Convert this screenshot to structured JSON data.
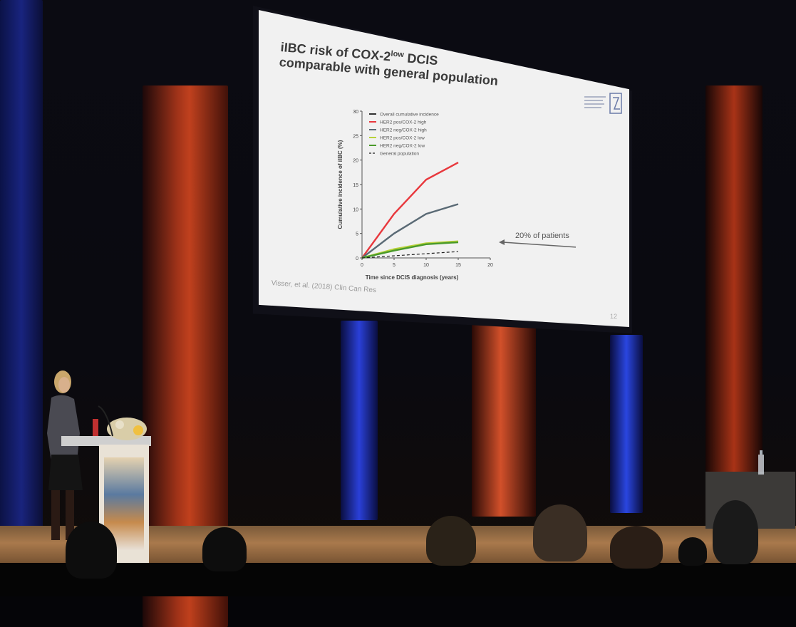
{
  "slide": {
    "title_line1": "iIBC risk of COX-2",
    "title_sup": "low",
    "title_line1_end": " DCIS",
    "title_line2": "comparable with general population",
    "citation": "Visser, et al. (2018) Clin Can Res",
    "slide_number": "12",
    "annotation": "20% of patients"
  },
  "chart_data": {
    "type": "line",
    "ylabel": "Cumulative incidence of iIBC (%)",
    "xlabel": "Time since DCIS diagnosis (years)",
    "xlim": [
      0,
      20
    ],
    "ylim": [
      0,
      30
    ],
    "x_ticks": [
      "0",
      "5",
      "10",
      "15",
      "20"
    ],
    "y_ticks": [
      "0",
      "5",
      "10",
      "15",
      "20",
      "25",
      "30"
    ],
    "legend_position": "top-right",
    "series": [
      {
        "name": "Overall cumulative incidence",
        "color": "#333333",
        "dash": false,
        "x": [],
        "y": []
      },
      {
        "name": "HER2 pos/COX-2 high",
        "color": "#e8383d",
        "dash": false,
        "x": [
          0,
          5,
          10,
          15
        ],
        "y": [
          0,
          9,
          16,
          19.5
        ]
      },
      {
        "name": "HER2 neg/COX-2 high",
        "color": "#5a6a75",
        "dash": false,
        "x": [
          0,
          5,
          10,
          15
        ],
        "y": [
          0,
          5,
          9,
          11
        ]
      },
      {
        "name": "HER2 pos/COX-2 low",
        "color": "#b8d23a",
        "dash": false,
        "x": [
          0,
          5,
          10,
          15
        ],
        "y": [
          0,
          1.8,
          3,
          3.4
        ]
      },
      {
        "name": "HER2 neg/COX-2 low",
        "color": "#4a9a2a",
        "dash": false,
        "x": [
          0,
          5,
          10,
          15
        ],
        "y": [
          0,
          1.5,
          2.8,
          3.2
        ]
      },
      {
        "name": "General population",
        "color": "#222222",
        "dash": true,
        "x": [
          0,
          15
        ],
        "y": [
          0,
          1.3
        ]
      }
    ]
  },
  "colors": {
    "curtain_red": "#c2401c",
    "curtain_blue": "#1c2a9a",
    "slide_bg": "#f1f1f1"
  }
}
